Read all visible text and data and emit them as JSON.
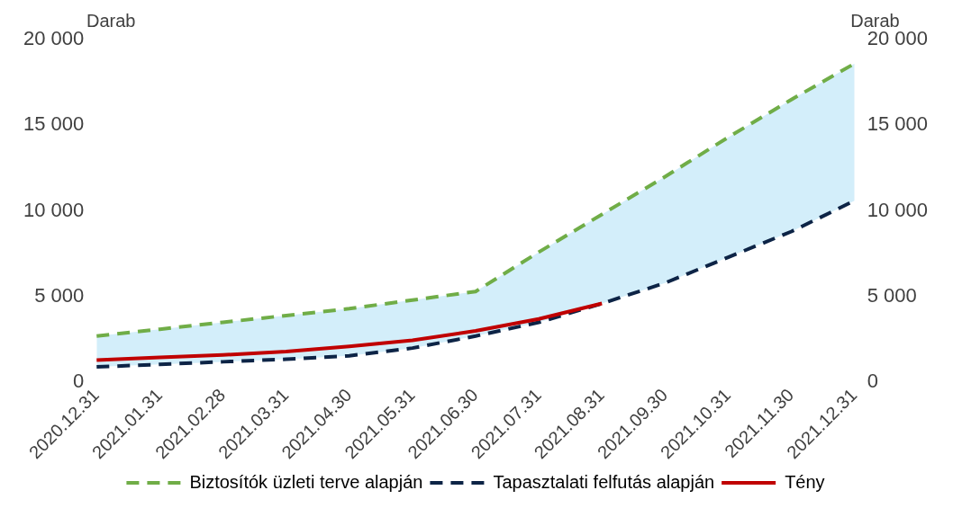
{
  "chart_data": {
    "type": "line",
    "ylabel": "Darab",
    "y2label": "Darab",
    "categories": [
      "2020.12.31",
      "2021.01.31",
      "2021.02.28",
      "2021.03.31",
      "2021.04.30",
      "2021.05.31",
      "2021.06.30",
      "2021.07.31",
      "2021.08.31",
      "2021.09.30",
      "2021.10.31",
      "2021.11.30",
      "2021.12.31"
    ],
    "series": [
      {
        "name": "Biztosítók üzleti terve alapján",
        "color": "#70ad47",
        "line_style": "dashed",
        "values": [
          2700,
          3100,
          3500,
          3900,
          4300,
          4800,
          5300,
          7600,
          9800,
          12000,
          14300,
          16500,
          18600
        ],
        "upper": [
          2700,
          3100,
          3500,
          3900,
          4300,
          4800,
          5300,
          7600,
          9800,
          12000,
          14300,
          16500,
          18600
        ],
        "lower": [
          900,
          1050,
          1200,
          1350,
          1550,
          2000,
          2700,
          3500,
          4600,
          5800,
          7300,
          8800,
          10600
        ]
      },
      {
        "name": "Tapasztalati felfutás alapján",
        "color": "#0d2446",
        "line_style": "dashed",
        "values": [
          900,
          1050,
          1200,
          1350,
          1550,
          2000,
          2700,
          3500,
          4600,
          5800,
          7300,
          8800,
          10600
        ]
      },
      {
        "name": "Tény",
        "color": "#c00000",
        "line_style": "solid",
        "values": [
          1300,
          1450,
          1600,
          1800,
          2100,
          2450,
          3000,
          3700,
          4600,
          null,
          null,
          null,
          null
        ]
      }
    ],
    "ylim": [
      0,
      20000
    ],
    "yticks": [
      0,
      {
        "value": 5000,
        "label": "5 000"
      },
      {
        "value": 10000,
        "label": "10 000"
      },
      {
        "value": 15000,
        "label": "15 000"
      },
      {
        "value": 20000,
        "label": "20 000"
      }
    ],
    "y2lim": [
      0,
      20000
    ],
    "y2ticks": [
      0,
      {
        "value": 5000,
        "label": "5 000"
      },
      {
        "value": 10000,
        "label": "10 000"
      },
      {
        "value": 15000,
        "label": "15 000"
      },
      {
        "value": 20000,
        "label": "20 000"
      }
    ],
    "grid": false,
    "legend": "bottom",
    "marker": "none"
  }
}
